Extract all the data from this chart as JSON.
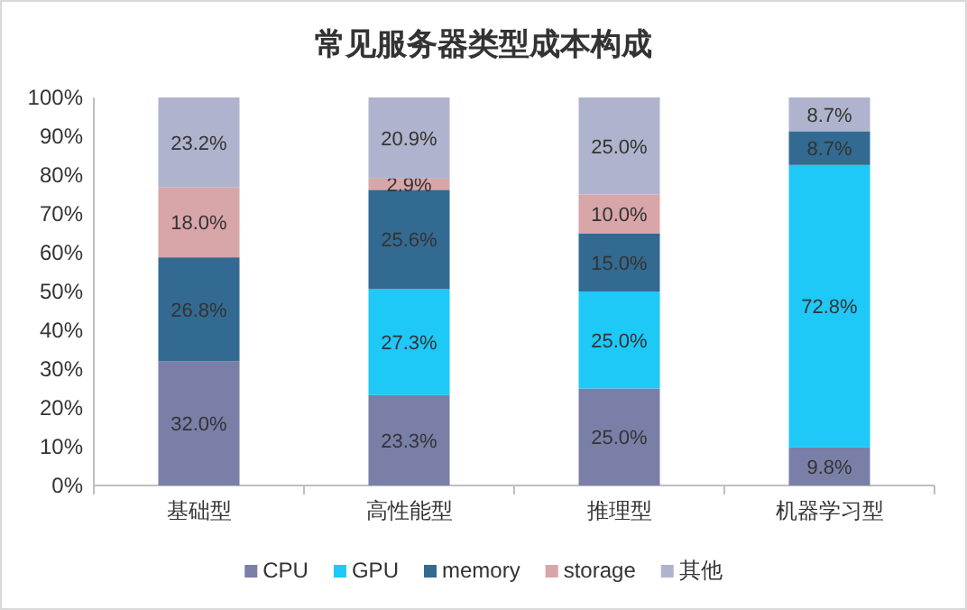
{
  "chart_data": {
    "type": "bar",
    "title": "常见服务器类型成本构成",
    "stacked": true,
    "legend": "bottom",
    "categories": [
      "基础型",
      "高性能型",
      "推理型",
      "机器学习型"
    ],
    "ylim": [
      0,
      100
    ],
    "yticks": [
      {
        "value": 0,
        "label": "0%"
      },
      {
        "value": 10,
        "label": "10%"
      },
      {
        "value": 20,
        "label": "20%"
      },
      {
        "value": 30,
        "label": "30%"
      },
      {
        "value": 40,
        "label": "40%"
      },
      {
        "value": 50,
        "label": "50%"
      },
      {
        "value": 60,
        "label": "60%"
      },
      {
        "value": 70,
        "label": "70%"
      },
      {
        "value": 80,
        "label": "80%"
      },
      {
        "value": 90,
        "label": "90%"
      },
      {
        "value": 100,
        "label": "100%"
      }
    ],
    "series": [
      {
        "name": "CPU",
        "color": "#7a7fa8",
        "values": [
          32.0,
          23.3,
          25.0,
          9.8
        ],
        "value_labels": [
          "32.0%",
          "23.3%",
          "25.0%",
          "9.8%"
        ]
      },
      {
        "name": "GPU",
        "color": "#1ec8f7",
        "values": [
          0,
          27.3,
          25.0,
          72.8
        ],
        "value_labels": [
          null,
          "27.3%",
          "25.0%",
          "72.8%"
        ]
      },
      {
        "name": "memory",
        "color": "#336a91",
        "values": [
          26.8,
          25.6,
          15.0,
          8.7
        ],
        "value_labels": [
          "26.8%",
          "25.6%",
          "15.0%",
          "8.7%"
        ]
      },
      {
        "name": "storage",
        "color": "#d8a5a9",
        "values": [
          18.0,
          2.9,
          10.0,
          0
        ],
        "value_labels": [
          "18.0%",
          "2.9%",
          "10.0%",
          null
        ]
      },
      {
        "name": "其他",
        "color": "#b0b3cd",
        "values": [
          23.2,
          20.9,
          25.0,
          8.7
        ],
        "value_labels": [
          "23.2%",
          "20.9%",
          "25.0%",
          "8.7%"
        ]
      }
    ]
  }
}
